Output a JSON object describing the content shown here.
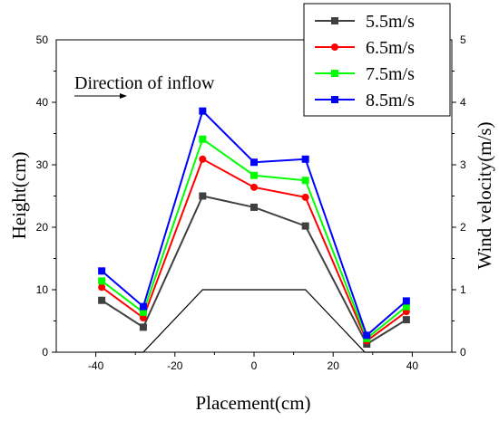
{
  "chart_data": {
    "type": "line",
    "xlabel": "Placement(cm)",
    "ylabel": "Height(cm)",
    "y2label": "Wind velocity(m/s)",
    "xlim": [
      -50,
      50
    ],
    "ylim": [
      0,
      50
    ],
    "y2lim": [
      0,
      5
    ],
    "xticks": [
      "-40",
      "-20",
      "0",
      "20",
      "40"
    ],
    "xtick_values": [
      -40,
      -20,
      0,
      20,
      40
    ],
    "yticks": [
      "0",
      "10",
      "20",
      "30",
      "40",
      "50"
    ],
    "ytick_values": [
      0,
      10,
      20,
      30,
      40,
      50
    ],
    "y2ticks": [
      "0",
      "1",
      "2",
      "3",
      "4",
      "5"
    ],
    "y2tick_values": [
      0,
      1,
      2,
      3,
      4,
      5
    ],
    "annotation": "Direction of inflow",
    "legend_position": "top-right",
    "terrain": {
      "x": [
        -40,
        -28,
        -13,
        13,
        28,
        40
      ],
      "y": [
        0,
        0,
        10,
        10,
        0,
        0
      ]
    },
    "x": [
      -38.5,
      -28,
      -13,
      0,
      13,
      28.5,
      38.5
    ],
    "series": [
      {
        "name": "5.5m/s",
        "color": "#404040",
        "marker": "square",
        "values": [
          0.83,
          0.4,
          2.5,
          2.32,
          2.02,
          0.13,
          0.52
        ]
      },
      {
        "name": "6.5m/s",
        "color": "#ff0000",
        "marker": "circle",
        "values": [
          1.04,
          0.55,
          3.09,
          2.64,
          2.48,
          0.18,
          0.65
        ]
      },
      {
        "name": "7.5m/s",
        "color": "#00ff00",
        "marker": "square",
        "values": [
          1.14,
          0.64,
          3.41,
          2.83,
          2.75,
          0.22,
          0.73
        ]
      },
      {
        "name": "8.5m/s",
        "color": "#0000ff",
        "marker": "square",
        "values": [
          1.3,
          0.73,
          3.86,
          3.04,
          3.09,
          0.27,
          0.82
        ]
      }
    ]
  }
}
